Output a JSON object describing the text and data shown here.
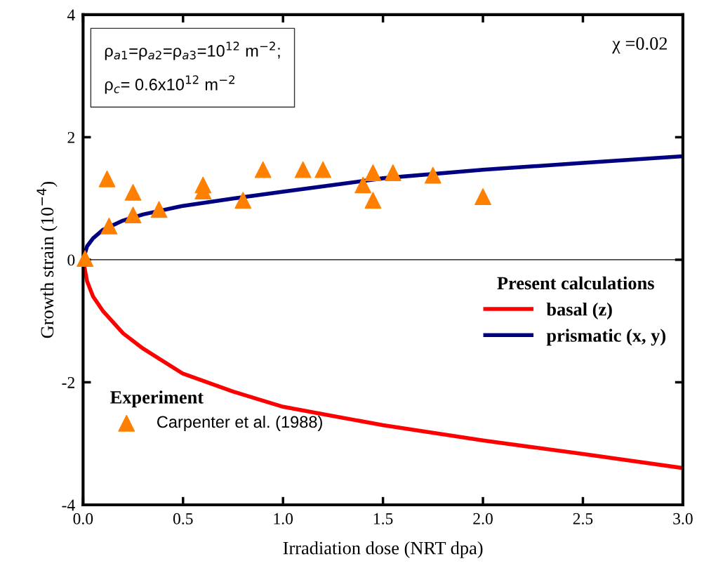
{
  "chart_data": {
    "type": "line",
    "xlabel": "Irradiation dose (NRT dpa)",
    "ylabel": "Growth strain (10$^{−4}$)",
    "legend_title": "Present calculations",
    "xlim": [
      0,
      3
    ],
    "ylim": [
      -4,
      4
    ],
    "xticks": [
      {
        "value": 0,
        "label": "0.0"
      },
      0.5,
      {
        "value": 1,
        "label": "1.0"
      },
      1.5,
      {
        "value": 2,
        "label": "2.0"
      },
      2.5,
      {
        "value": 3,
        "label": "3.0"
      }
    ],
    "yticks": [
      -4,
      -2,
      0,
      2,
      4
    ],
    "grid": false,
    "legend": "right",
    "ref_lines": [
      {
        "axis": "y",
        "value": 0,
        "color": "#000000",
        "line_style": "solid"
      }
    ],
    "annotations": [
      "ρ$_{a1}$=ρ$_{a2}$=ρ$_{a3}$=10$^{12}$ m$^{−2}$;\nρ$_{c}$= 0.6x10$^{12}$ m$^{−2}$",
      "χ =0.02",
      "Experiment"
    ],
    "series": [
      {
        "name": "basal (z)",
        "color": "#ff0000",
        "marker": "none",
        "x": [
          0,
          0.02,
          0.05,
          0.1,
          0.2,
          0.3,
          0.5,
          0.75,
          1.0,
          1.25,
          1.5,
          2.0,
          2.5,
          3.0
        ],
        "values": [
          0,
          -0.35,
          -0.6,
          -0.84,
          -1.2,
          -1.45,
          -1.86,
          -2.15,
          -2.4,
          -2.55,
          -2.7,
          -2.95,
          -3.17,
          -3.4
        ]
      },
      {
        "name": "prismatic (x, y)",
        "color": "#000080",
        "marker": "none",
        "x": [
          0,
          0.02,
          0.05,
          0.1,
          0.2,
          0.3,
          0.5,
          0.75,
          1.0,
          1.25,
          1.5,
          2.0,
          2.5,
          3.0
        ],
        "values": [
          0,
          0.22,
          0.35,
          0.49,
          0.64,
          0.74,
          0.88,
          1.0,
          1.11,
          1.22,
          1.33,
          1.47,
          1.58,
          1.69
        ]
      },
      {
        "name": "Carpenter et al. (1988)",
        "color": "#ff8000",
        "type": "scatter",
        "marker": "triangle",
        "x": [
          0.01,
          0.12,
          0.13,
          0.25,
          0.25,
          0.38,
          0.6,
          0.6,
          0.8,
          0.9,
          1.1,
          1.2,
          1.4,
          1.45,
          1.45,
          1.55,
          1.75,
          2.0
        ],
        "values": [
          0.02,
          1.32,
          0.55,
          1.1,
          0.73,
          0.82,
          1.22,
          1.12,
          0.97,
          1.47,
          1.47,
          1.47,
          1.22,
          1.42,
          0.97,
          1.42,
          1.38,
          1.03
        ]
      }
    ]
  }
}
